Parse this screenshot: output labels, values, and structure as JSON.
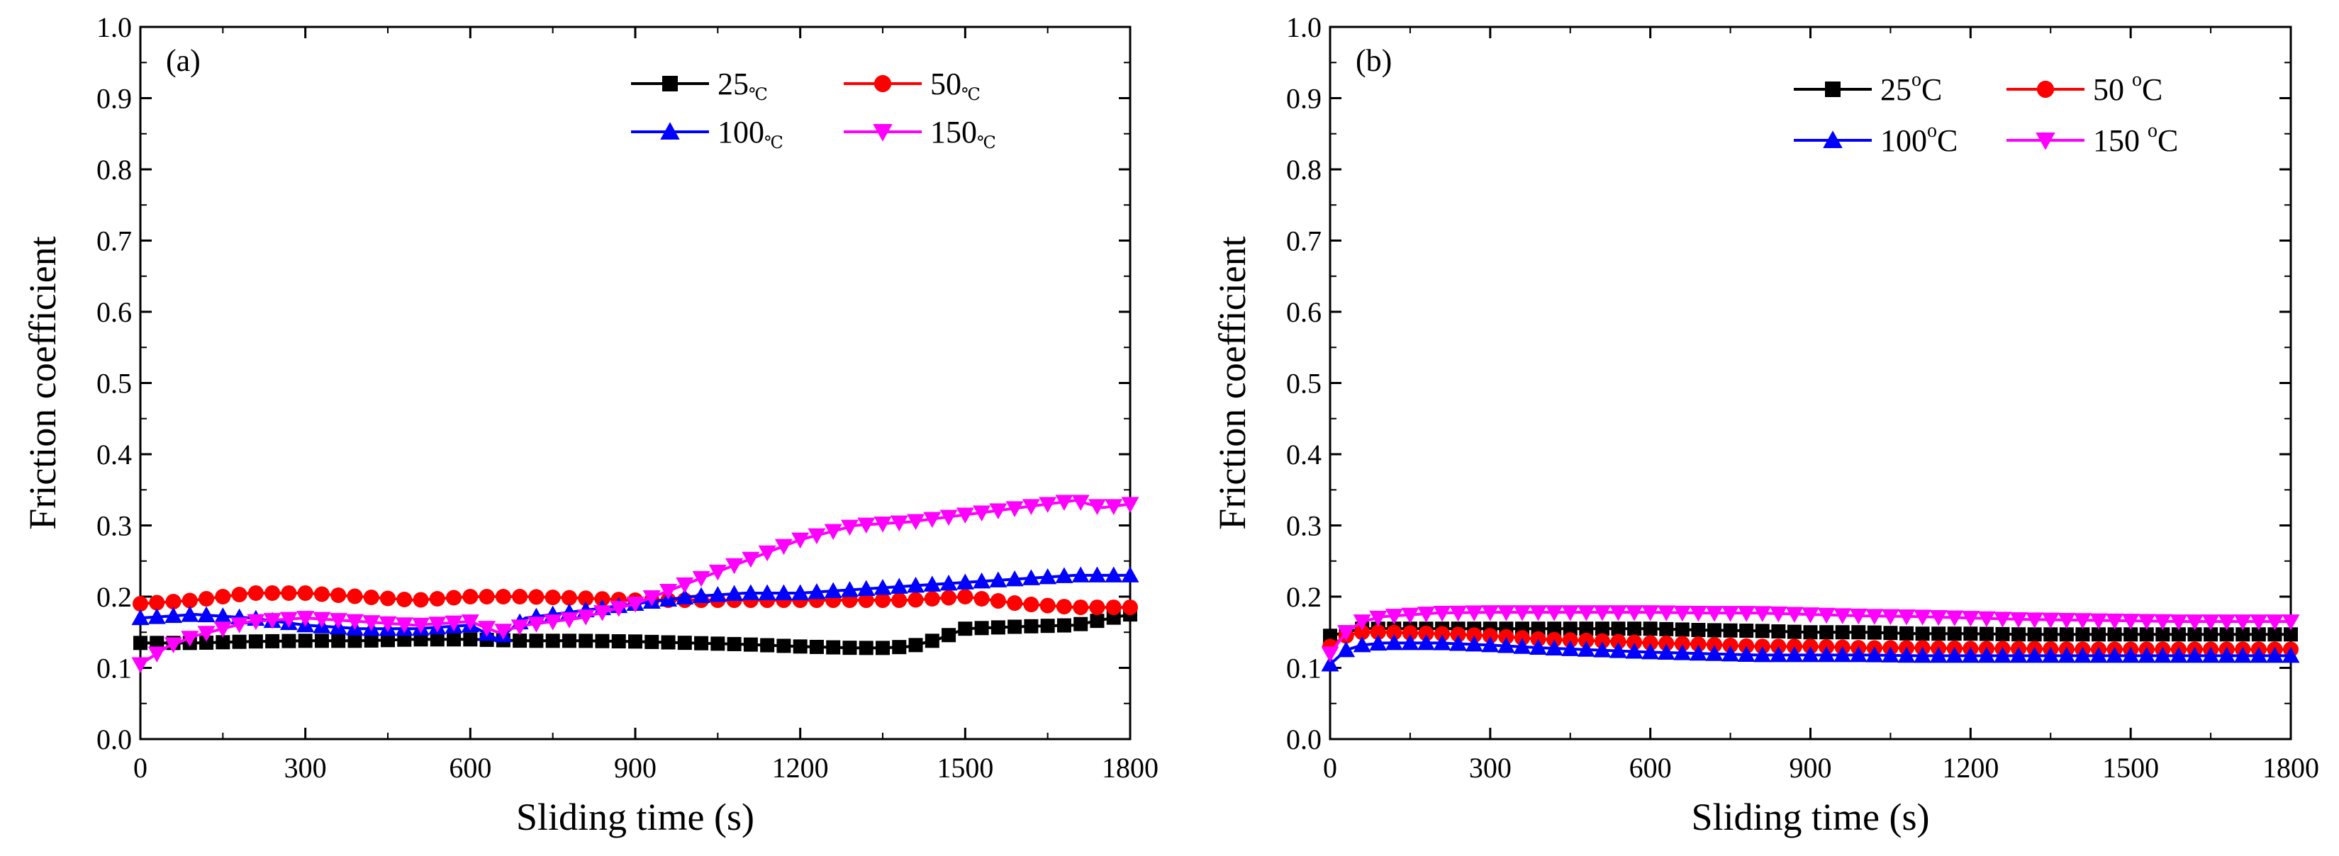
{
  "chart_data": [
    {
      "type": "line",
      "panel_label": "(a)",
      "xlabel": "Sliding time (s)",
      "ylabel": "Friction coefficient",
      "xlim": [
        0,
        1800
      ],
      "ylim": [
        0.0,
        1.0
      ],
      "xticks": [
        "0",
        "300",
        "600",
        "900",
        "1200",
        "1500",
        "1800"
      ],
      "yticks": [
        "0.0",
        "0.1",
        "0.2",
        "0.3",
        "0.4",
        "0.5",
        "0.6",
        "0.7",
        "0.8",
        "0.9",
        "1.0"
      ],
      "legend_position": "top-right",
      "series": [
        {
          "name": "25",
          "unit": "℃",
          "color": "#000000",
          "marker": "square",
          "x": [
            0,
            100,
            200,
            300,
            400,
            500,
            600,
            700,
            800,
            900,
            1000,
            1100,
            1200,
            1300,
            1350,
            1400,
            1450,
            1500,
            1600,
            1700,
            1800
          ],
          "y": [
            0.135,
            0.135,
            0.137,
            0.138,
            0.138,
            0.14,
            0.14,
            0.138,
            0.138,
            0.137,
            0.135,
            0.133,
            0.13,
            0.128,
            0.128,
            0.13,
            0.14,
            0.155,
            0.158,
            0.16,
            0.175
          ]
        },
        {
          "name": "50",
          "unit": "℃",
          "color": "#ff0000",
          "marker": "circle",
          "x": [
            0,
            100,
            200,
            300,
            400,
            500,
            600,
            700,
            800,
            900,
            1000,
            1100,
            1200,
            1300,
            1400,
            1500,
            1600,
            1700,
            1800
          ],
          "y": [
            0.19,
            0.195,
            0.205,
            0.205,
            0.2,
            0.195,
            0.2,
            0.2,
            0.198,
            0.195,
            0.195,
            0.195,
            0.195,
            0.195,
            0.195,
            0.2,
            0.19,
            0.185,
            0.185
          ]
        },
        {
          "name": "100",
          "unit": "℃",
          "color": "#0000ff",
          "marker": "triangle-up",
          "x": [
            0,
            100,
            200,
            300,
            400,
            500,
            600,
            650,
            700,
            800,
            900,
            1000,
            1100,
            1200,
            1300,
            1400,
            1500,
            1600,
            1700,
            1800
          ],
          "y": [
            0.17,
            0.175,
            0.17,
            0.16,
            0.155,
            0.155,
            0.16,
            0.14,
            0.17,
            0.18,
            0.19,
            0.2,
            0.205,
            0.205,
            0.21,
            0.215,
            0.22,
            0.225,
            0.23,
            0.23
          ]
        },
        {
          "name": "150",
          "unit": "℃",
          "color": "#ff00ff",
          "marker": "triangle-down",
          "x": [
            0,
            50,
            100,
            200,
            300,
            400,
            500,
            600,
            650,
            700,
            800,
            900,
            1000,
            1100,
            1200,
            1300,
            1400,
            1500,
            1600,
            1650,
            1700,
            1750,
            1800
          ],
          "y": [
            0.105,
            0.13,
            0.145,
            0.165,
            0.17,
            0.165,
            0.16,
            0.165,
            0.15,
            0.16,
            0.17,
            0.19,
            0.22,
            0.25,
            0.28,
            0.3,
            0.305,
            0.315,
            0.325,
            0.33,
            0.335,
            0.325,
            0.33
          ]
        }
      ]
    },
    {
      "type": "line",
      "panel_label": "(b)",
      "xlabel": "Sliding time (s)",
      "ylabel": "Friction coefficient",
      "xlim": [
        0,
        1800
      ],
      "ylim": [
        0.0,
        1.0
      ],
      "xticks": [
        "0",
        "300",
        "600",
        "900",
        "1200",
        "1500",
        "1800"
      ],
      "yticks": [
        "0.0",
        "0.1",
        "0.2",
        "0.3",
        "0.4",
        "0.5",
        "0.6",
        "0.7",
        "0.8",
        "0.9",
        "1.0"
      ],
      "legend_position": "top-right",
      "series": [
        {
          "name": "25",
          "unit": "oC",
          "color": "#000000",
          "marker": "square",
          "x": [
            0,
            30,
            60,
            100,
            200,
            300,
            400,
            500,
            600,
            700,
            800,
            900,
            1000,
            1100,
            1200,
            1300,
            1400,
            1500,
            1600,
            1700,
            1800
          ],
          "y": [
            0.145,
            0.15,
            0.155,
            0.155,
            0.155,
            0.155,
            0.155,
            0.155,
            0.155,
            0.153,
            0.152,
            0.15,
            0.15,
            0.148,
            0.148,
            0.147,
            0.147,
            0.147,
            0.147,
            0.147,
            0.147
          ]
        },
        {
          "name": "50 ",
          "unit": "oC",
          "color": "#ff0000",
          "marker": "circle",
          "x": [
            0,
            30,
            60,
            100,
            200,
            300,
            400,
            500,
            600,
            700,
            800,
            900,
            1000,
            1100,
            1200,
            1300,
            1400,
            1500,
            1600,
            1700,
            1800
          ],
          "y": [
            0.13,
            0.145,
            0.15,
            0.15,
            0.148,
            0.145,
            0.14,
            0.138,
            0.135,
            0.133,
            0.13,
            0.13,
            0.128,
            0.128,
            0.127,
            0.127,
            0.126,
            0.126,
            0.126,
            0.126,
            0.126
          ]
        },
        {
          "name": "100",
          "unit": "oC",
          "color": "#0000ff",
          "marker": "triangle-up",
          "x": [
            0,
            30,
            60,
            100,
            200,
            300,
            400,
            500,
            600,
            700,
            800,
            900,
            1000,
            1100,
            1200,
            1300,
            1400,
            1500,
            1600,
            1700,
            1800
          ],
          "y": [
            0.105,
            0.125,
            0.132,
            0.135,
            0.135,
            0.132,
            0.128,
            0.125,
            0.122,
            0.12,
            0.118,
            0.118,
            0.118,
            0.117,
            0.117,
            0.117,
            0.117,
            0.117,
            0.117,
            0.117,
            0.117
          ]
        },
        {
          "name": "150 ",
          "unit": "oC",
          "color": "#ff00ff",
          "marker": "triangle-down",
          "x": [
            0,
            30,
            60,
            100,
            200,
            300,
            400,
            500,
            600,
            700,
            800,
            900,
            1000,
            1100,
            1200,
            1300,
            1400,
            1500,
            1600,
            1700,
            1800
          ],
          "y": [
            0.12,
            0.15,
            0.165,
            0.172,
            0.177,
            0.178,
            0.178,
            0.178,
            0.178,
            0.177,
            0.177,
            0.175,
            0.173,
            0.172,
            0.17,
            0.168,
            0.167,
            0.166,
            0.165,
            0.165,
            0.165
          ]
        }
      ]
    }
  ]
}
